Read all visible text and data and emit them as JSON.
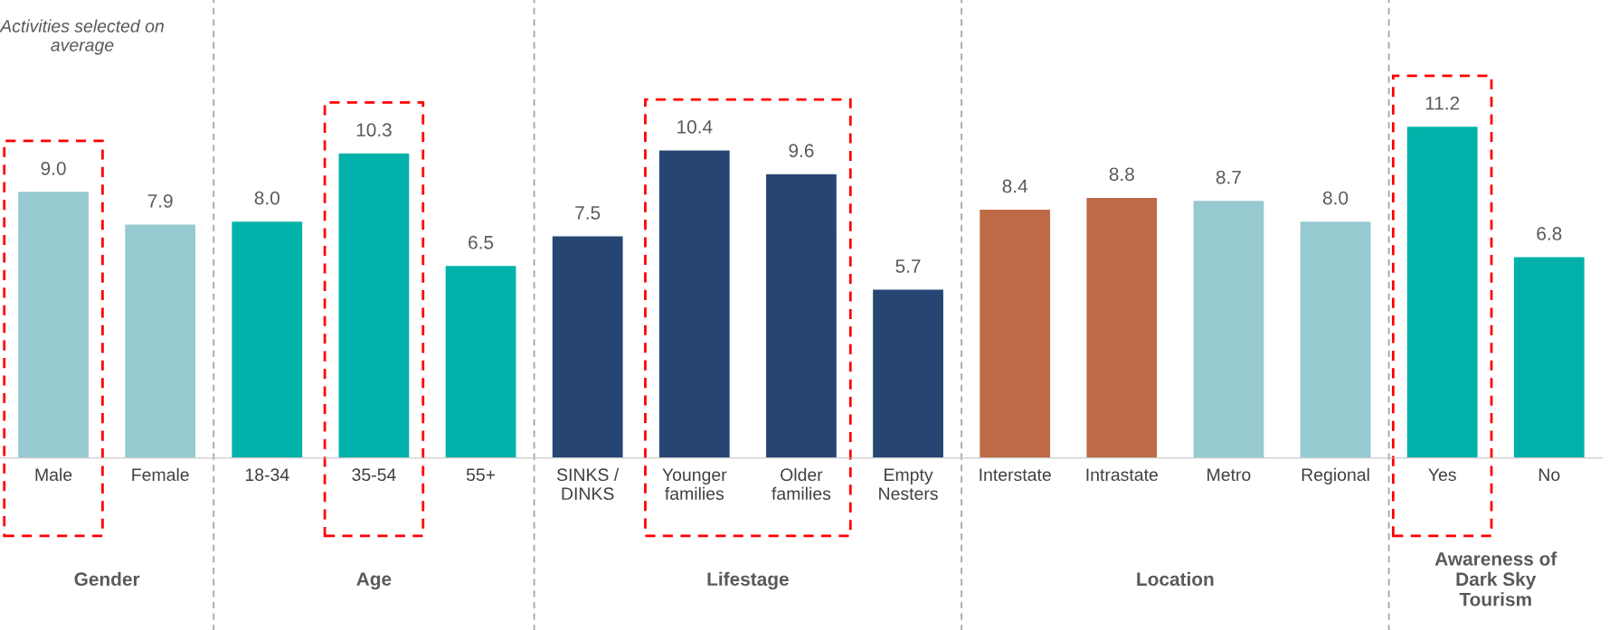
{
  "chart_data": {
    "type": "bar",
    "categories": [
      "Male",
      "Female",
      "18-34",
      "35-54",
      "55+",
      "SINKS /\nDINKS",
      "Younger\nfamilies",
      "Older\nfamilies",
      "Empty\nNesters",
      "Interstate",
      "Intrastate",
      "Metro",
      "Regional",
      "Yes",
      "No"
    ],
    "values": [
      9.0,
      7.9,
      8.0,
      10.3,
      6.5,
      7.5,
      10.4,
      9.6,
      5.7,
      8.4,
      8.8,
      8.7,
      8.0,
      11.2,
      6.8
    ],
    "colors": [
      "#96c9d0",
      "#96c9d0",
      "#00b2a9",
      "#00b2a9",
      "#00b2a9",
      "#264573",
      "#264573",
      "#264573",
      "#264573",
      "#bf6a47",
      "#bf6a47",
      "#96c9d0",
      "#96c9d0",
      "#00b2a9",
      "#00b2a9"
    ],
    "value_labels": [
      "9.0",
      "7.9",
      "8.0",
      "10.3",
      "6.5",
      "7.5",
      "10.4",
      "9.6",
      "5.7",
      "8.4",
      "8.8",
      "8.7",
      "8.0",
      "11.2",
      "6.8"
    ],
    "annotations": [
      "Activities selected on average",
      "Gender",
      "Age",
      "Lifestage",
      "Location",
      "Awareness of\nDark Sky\nTourism"
    ],
    "grid": false,
    "legend": false
  }
}
